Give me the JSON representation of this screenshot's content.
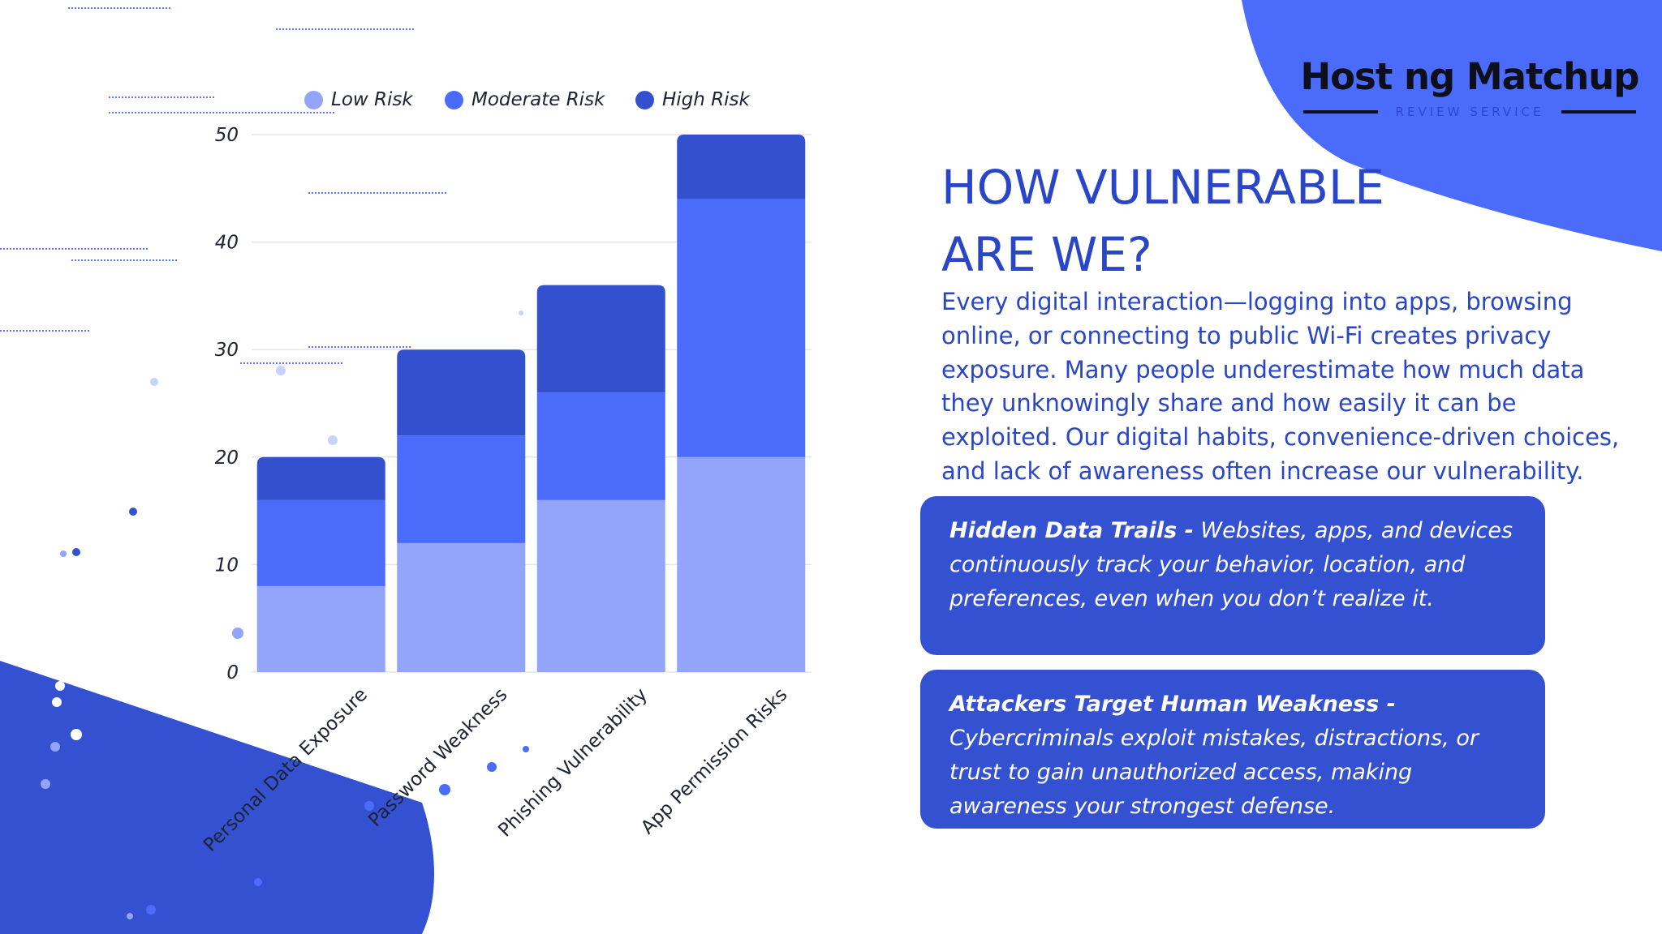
{
  "logo": {
    "name": "Host ng Matchup",
    "tagline": "REVIEW SERVICE"
  },
  "heading": {
    "line1": "HOW VULNERABLE",
    "line2": "ARE WE?"
  },
  "intro": "Every digital interaction—logging into apps, browsing online, or connecting to public Wi-Fi creates privacy exposure. Many people underestimate how much data they unknowingly share and how easily it can be exploited. Our digital habits, convenience-driven choices, and lack of awareness often increase our vulnerability.",
  "cards": [
    {
      "title": "Hidden Data Trails -",
      "body": "Websites, apps, and devices continuously track your behavior, location, and preferences, even when you don’t realize it."
    },
    {
      "title": "Attackers Target Human Weakness -",
      "body": "Cybercriminals exploit mistakes, distractions, or trust to gain unauthorized access, making awareness your strongest defense."
    }
  ],
  "colors": {
    "primary": "#3451d1",
    "low": "#93a5fb",
    "moderate": "#4b6cfb",
    "high": "#3350cf",
    "heading": "#2a46c8"
  },
  "chart_data": {
    "type": "bar",
    "stacked": true,
    "categories": [
      "Personal Data Exposure",
      "Password Weakness",
      "Phishing Vulnerability",
      "App Permission Risks"
    ],
    "series": [
      {
        "name": "Low Risk",
        "color": "#93a5fb",
        "values": [
          8,
          12,
          16,
          20
        ]
      },
      {
        "name": "Moderate Risk",
        "color": "#4b6cfb",
        "values": [
          8,
          10,
          10,
          24
        ]
      },
      {
        "name": "High Risk",
        "color": "#3350cf",
        "values": [
          4,
          8,
          10,
          6
        ]
      }
    ],
    "yticks": [
      "0",
      "10",
      "20",
      "30",
      "40",
      "50"
    ],
    "ylim": [
      0,
      50
    ],
    "grid": true,
    "legend": "top"
  }
}
